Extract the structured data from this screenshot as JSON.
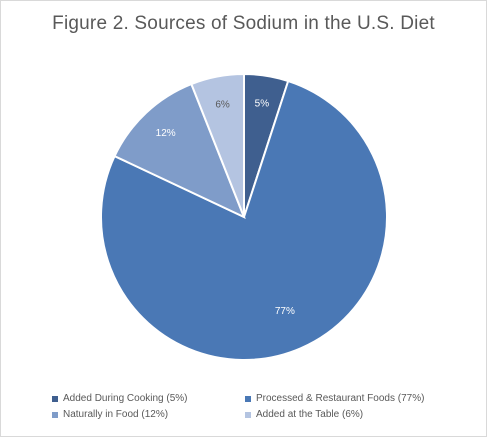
{
  "chart_data": {
    "type": "pie",
    "title": "Figure 2. Sources of Sodium in the U.S. Diet",
    "categories": [
      "Added During Cooking (5%)",
      "Processed & Restaurant Foods (77%)",
      "Naturally in Food (12%)",
      "Added at the Table (6%)"
    ],
    "values": [
      5,
      77,
      12,
      6
    ],
    "data_labels": [
      "5%",
      "77%",
      "12%",
      "6%"
    ],
    "colors": [
      "#3f5f8f",
      "#4a78b5",
      "#7f9cc9",
      "#b4c4e1"
    ],
    "legend_position": "bottom"
  }
}
